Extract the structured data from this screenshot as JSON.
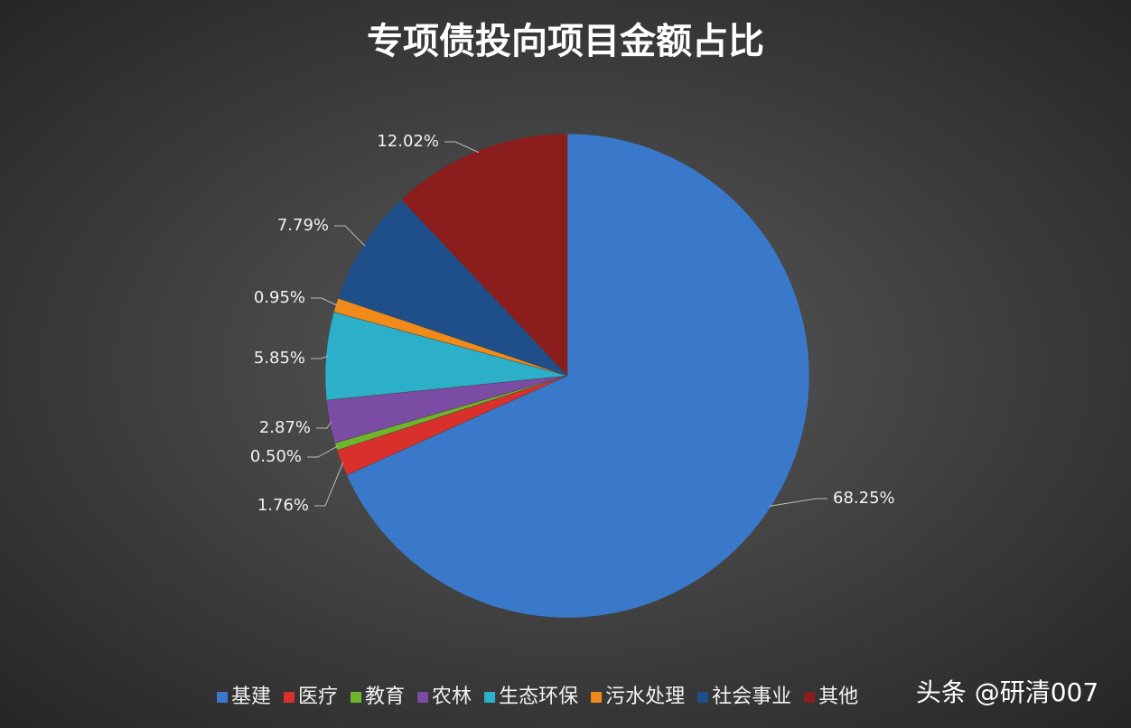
{
  "chart_data": {
    "type": "pie",
    "title": "专项债投向项目金额占比",
    "categories": [
      "基建",
      "医疗",
      "教育",
      "农林",
      "生态环保",
      "污水处理",
      "社会事业",
      "其他"
    ],
    "values": [
      68.25,
      1.76,
      0.5,
      2.87,
      5.85,
      0.95,
      7.79,
      12.02
    ],
    "value_labels": [
      "68.25%",
      "1.76%",
      "0.50%",
      "2.87%",
      "5.85%",
      "0.95%",
      "7.79%",
      "12.02%"
    ],
    "colors": [
      "#3a78c9",
      "#d9302c",
      "#6fb52c",
      "#7b4ca3",
      "#2cb0c9",
      "#f08a1a",
      "#1f4f8a",
      "#8b1d1d"
    ],
    "legend": "bottom"
  },
  "watermark": "头条 @研清007"
}
